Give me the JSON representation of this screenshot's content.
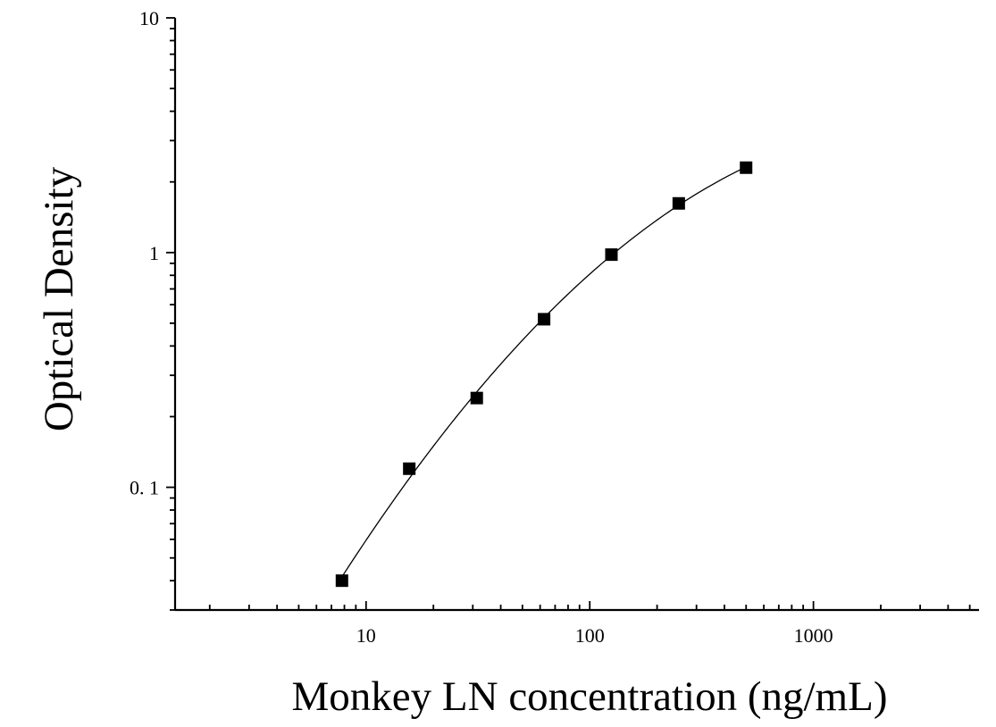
{
  "chart_data": {
    "type": "scatter",
    "xlabel": "Monkey LN concentration (ng/mL)",
    "ylabel": "Optical Density",
    "x_scale": "log",
    "y_scale": "log",
    "xlim": [
      1.4,
      5500
    ],
    "ylim": [
      0.03,
      10
    ],
    "x_ticks": [
      10,
      100,
      1000
    ],
    "x_tick_labels": [
      "10",
      "100",
      "1000"
    ],
    "y_ticks": [
      0.1,
      1,
      10
    ],
    "y_tick_labels": [
      "0. 1",
      "1",
      "10"
    ],
    "grid": false,
    "fit_curve": true,
    "marker": "square",
    "color": "#000000",
    "series": [
      {
        "x": [
          7.8,
          15.6,
          31.25,
          62.5,
          125,
          250,
          500
        ],
        "y": [
          0.04,
          0.12,
          0.24,
          0.52,
          0.98,
          1.62,
          2.3
        ]
      }
    ]
  }
}
